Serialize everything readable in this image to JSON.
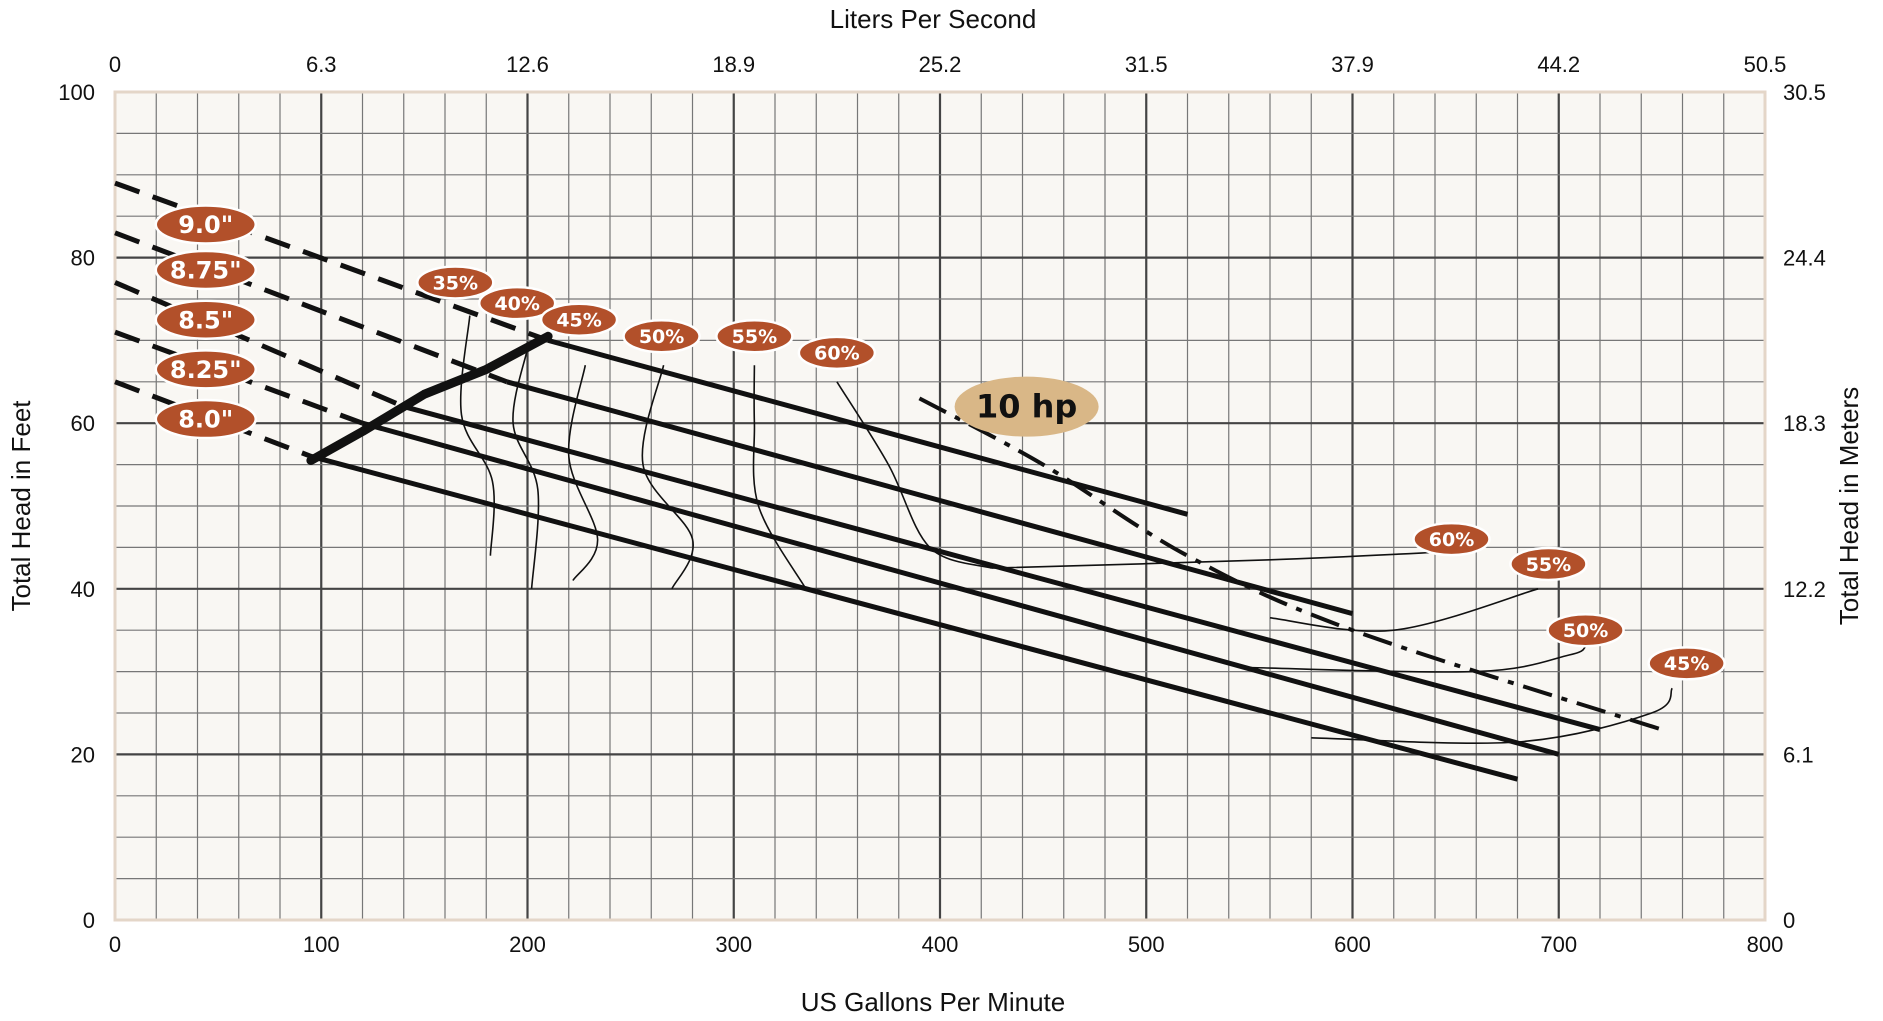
{
  "chart_data": {
    "type": "line",
    "top_axis_title": "Liters Per Second",
    "bottom_axis_title": "US Gallons Per Minute",
    "left_axis_title": "Total Head in Feet",
    "right_axis_title": "Total Head in Meters",
    "x_ticks": [
      "0",
      "100",
      "200",
      "300",
      "400",
      "500",
      "600",
      "700",
      "800"
    ],
    "x_tick_values": [
      0,
      100,
      200,
      300,
      400,
      500,
      600,
      700,
      800
    ],
    "top_ticks": [
      "0",
      "6.3",
      "12.6",
      "18.9",
      "25.2",
      "31.5",
      "37.9",
      "44.2",
      "50.5"
    ],
    "y_ticks": [
      "0",
      "20",
      "40",
      "60",
      "80",
      "100"
    ],
    "y_tick_values": [
      0,
      20,
      40,
      60,
      80,
      100
    ],
    "right_ticks": [
      "0",
      "6.1",
      "12.2",
      "18.3",
      "24.4",
      "30.5"
    ],
    "xlim": [
      0,
      800
    ],
    "ylim": [
      0,
      100
    ],
    "grid": true,
    "colors": {
      "background": "#f9f7f3",
      "grid": "#555555",
      "badge": "#b2502a",
      "hp_badge": "#d9b787",
      "line": "#111111"
    },
    "impeller_curves": [
      {
        "label": "9.0\"",
        "dashed": [
          [
            0,
            89
          ],
          [
            210,
            70
          ]
        ],
        "solid": [
          [
            210,
            70
          ],
          [
            520,
            49
          ]
        ],
        "label_at": [
          44,
          84
        ]
      },
      {
        "label": "8.75\"",
        "dashed": [
          [
            0,
            83
          ],
          [
            190,
            65
          ]
        ],
        "solid": [
          [
            190,
            65
          ],
          [
            600,
            37
          ]
        ],
        "label_at": [
          44,
          78.5
        ]
      },
      {
        "label": "8.5\"",
        "dashed": [
          [
            0,
            77
          ],
          [
            140,
            62
          ]
        ],
        "solid": [
          [
            140,
            62
          ],
          [
            720,
            23
          ]
        ],
        "label_at": [
          44,
          72.5
        ]
      },
      {
        "label": "8.25\"",
        "dashed": [
          [
            0,
            71
          ],
          [
            120,
            60
          ]
        ],
        "solid": [
          [
            120,
            60
          ],
          [
            700,
            20
          ]
        ],
        "label_at": [
          44,
          66.5
        ]
      },
      {
        "label": "8.0\"",
        "dashed": [
          [
            0,
            65
          ],
          [
            95,
            56
          ]
        ],
        "solid": [
          [
            95,
            56
          ],
          [
            680,
            17
          ]
        ],
        "label_at": [
          44,
          60.5
        ]
      }
    ],
    "minimum_flow_line": [
      [
        95,
        55.5
      ],
      [
        120,
        59
      ],
      [
        150,
        63.5
      ],
      [
        180,
        66.5
      ],
      [
        210,
        70.5
      ]
    ],
    "efficiency_labels_left": [
      {
        "label": "35%",
        "at": [
          165,
          77
        ]
      },
      {
        "label": "40%",
        "at": [
          195,
          74.5
        ]
      },
      {
        "label": "45%",
        "at": [
          225,
          72.5
        ]
      },
      {
        "label": "50%",
        "at": [
          265,
          70.5
        ]
      },
      {
        "label": "55%",
        "at": [
          310,
          70.5
        ]
      },
      {
        "label": "60%",
        "at": [
          350,
          68.5
        ]
      }
    ],
    "efficiency_labels_right": [
      {
        "label": "60%",
        "at": [
          648,
          46
        ]
      },
      {
        "label": "55%",
        "at": [
          695,
          43
        ]
      },
      {
        "label": "50%",
        "at": [
          713,
          35
        ]
      },
      {
        "label": "45%",
        "at": [
          762,
          31
        ]
      }
    ],
    "efficiency_curves_left": [
      [
        [
          172,
          73
        ],
        [
          168,
          61
        ],
        [
          183,
          53
        ],
        [
          182,
          44
        ]
      ],
      [
        [
          200,
          69
        ],
        [
          193,
          60
        ],
        [
          205,
          52
        ],
        [
          202,
          40
        ]
      ],
      [
        [
          228,
          67
        ],
        [
          220,
          56
        ],
        [
          234,
          46
        ],
        [
          222,
          41
        ]
      ],
      [
        [
          266,
          67
        ],
        [
          256,
          55
        ],
        [
          280,
          46
        ],
        [
          270,
          40
        ]
      ],
      [
        [
          310,
          67
        ],
        [
          310,
          60
        ],
        [
          312,
          50
        ],
        [
          335,
          40
        ]
      ],
      [
        [
          350,
          65
        ],
        [
          375,
          55
        ],
        [
          395,
          45
        ],
        [
          425,
          42.5
        ]
      ]
    ],
    "efficiency_curves_right": [
      [
        [
          425,
          42.5
        ],
        [
          560,
          43.5
        ],
        [
          648,
          44.5
        ]
      ],
      [
        [
          560,
          36.5
        ],
        [
          620,
          35
        ],
        [
          690,
          40
        ]
      ],
      [
        [
          550,
          30.5
        ],
        [
          660,
          30
        ],
        [
          705,
          32
        ],
        [
          713,
          33
        ]
      ],
      [
        [
          580,
          22
        ],
        [
          680,
          21.5
        ],
        [
          745,
          25
        ],
        [
          755,
          28
        ]
      ]
    ],
    "power_line": {
      "label": "10 hp",
      "points": [
        [
          390,
          63
        ],
        [
          450,
          55
        ],
        [
          520,
          44
        ],
        [
          600,
          35
        ],
        [
          750,
          23
        ]
      ],
      "label_at": [
        442,
        62
      ]
    }
  }
}
